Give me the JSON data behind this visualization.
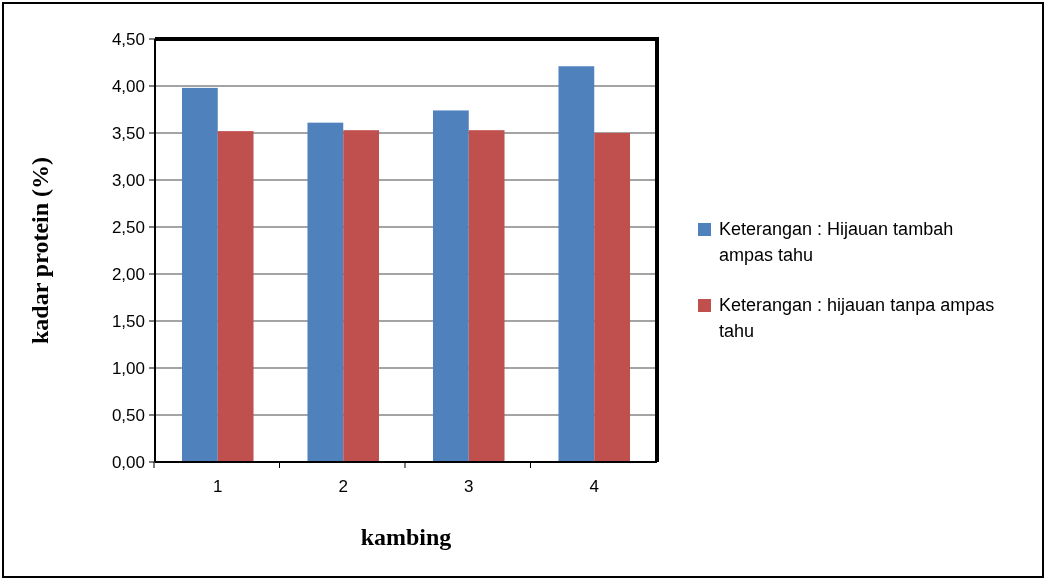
{
  "chart_data": {
    "type": "bar",
    "xlabel": "kambing",
    "ylabel": "kadar protein (%)",
    "categories": [
      "1",
      "2",
      "3",
      "4"
    ],
    "series": [
      {
        "name": "Keterangan : Hijauan tambah ampas tahu",
        "color": "#4f81bd",
        "values": [
          3.98,
          3.61,
          3.74,
          4.21
        ]
      },
      {
        "name": "Keterangan : hijauan tanpa ampas tahu",
        "color": "#c0504d",
        "values": [
          3.52,
          3.53,
          3.53,
          3.5
        ]
      }
    ],
    "ylim": [
      0,
      4.5
    ],
    "yticks": [
      {
        "value": 0,
        "label": "0,00"
      },
      {
        "value": 0.5,
        "label": "0,50"
      },
      {
        "value": 1,
        "label": "1,00"
      },
      {
        "value": 1.5,
        "label": "1,50"
      },
      {
        "value": 2,
        "label": "2,00"
      },
      {
        "value": 2.5,
        "label": "2,50"
      },
      {
        "value": 3,
        "label": "3,00"
      },
      {
        "value": 3.5,
        "label": "3,50"
      },
      {
        "value": 4,
        "label": "4,00"
      },
      {
        "value": 4.5,
        "label": "4,50"
      }
    ],
    "grid": "y",
    "legend": "right"
  }
}
